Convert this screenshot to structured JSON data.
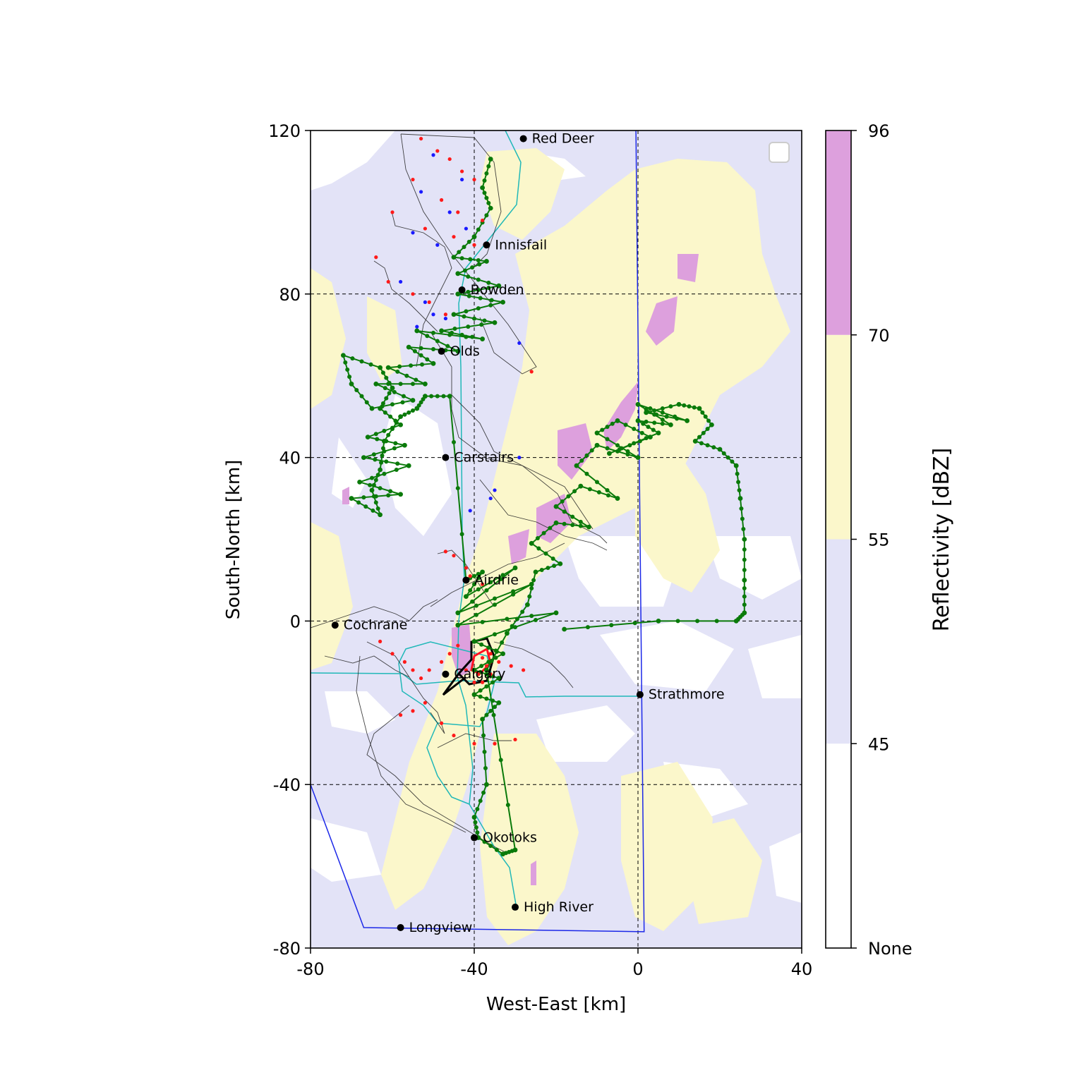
{
  "chart_data": {
    "type": "scatter",
    "xlabel": "West-East [km]",
    "ylabel": "South-North [km]",
    "xlim": [
      -80,
      40
    ],
    "ylim": [
      -80,
      120
    ],
    "xticks": [
      "-80",
      "-40",
      "0",
      "40"
    ],
    "yticks": [
      "120",
      "80",
      "40",
      "0",
      "-40",
      "-80"
    ],
    "grid_x": [
      -40,
      0
    ],
    "grid_y": [
      80,
      40,
      0,
      -40
    ],
    "legend": "top-right (empty)",
    "colorbar": {
      "label": "Reflectivity [dBZ]",
      "ticks": [
        "None",
        "45",
        "55",
        "70",
        "96"
      ],
      "bands": [
        {
          "from": "None",
          "to": "45",
          "color": "#ffffff"
        },
        {
          "from": "45",
          "to": "55",
          "color": "#e3e3f7"
        },
        {
          "from": "55",
          "to": "70",
          "color": "#fbf7cb"
        },
        {
          "from": "70",
          "to": "96",
          "color": "#dda0dd"
        }
      ]
    },
    "cities": [
      {
        "name": "Red Deer",
        "x": -28,
        "y": 118
      },
      {
        "name": "Innisfail",
        "x": -37,
        "y": 92
      },
      {
        "name": "Bowden",
        "x": -43,
        "y": 81
      },
      {
        "name": "Olds",
        "x": -48,
        "y": 66
      },
      {
        "name": "Carstairs",
        "x": -47,
        "y": 40
      },
      {
        "name": "Airdrie",
        "x": -42,
        "y": 10
      },
      {
        "name": "Cochrane",
        "x": -74,
        "y": -1
      },
      {
        "name": "Calgary",
        "x": -47,
        "y": -13
      },
      {
        "name": "Strathmore",
        "x": 0.5,
        "y": -18
      },
      {
        "name": "Okotoks",
        "x": -40,
        "y": -53
      },
      {
        "name": "High River",
        "x": -30,
        "y": -70
      },
      {
        "name": "Longview",
        "x": -58,
        "y": -75
      }
    ],
    "boundary_blue": [
      [
        -80,
        -40
      ],
      [
        -67,
        -75
      ],
      [
        1.5,
        -76
      ],
      [
        -0.5,
        120
      ]
    ],
    "green_track": [
      [
        -36,
        113
      ],
      [
        -38,
        106
      ],
      [
        -36,
        101
      ],
      [
        -40,
        94
      ],
      [
        -45,
        89
      ],
      [
        -37,
        88
      ],
      [
        -44,
        85
      ],
      [
        -34,
        82
      ],
      [
        -44,
        80
      ],
      [
        -33,
        78
      ],
      [
        -45,
        75
      ],
      [
        -35,
        73
      ],
      [
        -48,
        71
      ],
      [
        -38,
        69
      ],
      [
        -54,
        71
      ],
      [
        -44,
        66
      ],
      [
        -56,
        67
      ],
      [
        -50,
        63
      ],
      [
        -61,
        62
      ],
      [
        -52,
        58
      ],
      [
        -64,
        58
      ],
      [
        -55,
        54
      ],
      [
        -65,
        52
      ],
      [
        -70,
        58
      ],
      [
        -72,
        65
      ],
      [
        -63,
        62
      ],
      [
        -60,
        57
      ],
      [
        -63,
        52
      ],
      [
        -58,
        48
      ],
      [
        -66,
        45
      ],
      [
        -57,
        43
      ],
      [
        -67,
        40
      ],
      [
        -56,
        38
      ],
      [
        -68,
        34
      ],
      [
        -58,
        31
      ],
      [
        -70,
        30
      ],
      [
        -63,
        26
      ],
      [
        -65,
        32
      ],
      [
        -63,
        37
      ],
      [
        -62,
        44
      ],
      [
        -58,
        50
      ],
      [
        -54,
        52
      ],
      [
        -52,
        55
      ],
      [
        -46,
        55
      ],
      [
        -42,
        10
      ],
      [
        -38,
        12
      ],
      [
        -42,
        6
      ],
      [
        -30,
        13
      ],
      [
        -44,
        2
      ],
      [
        -26,
        9
      ],
      [
        -44,
        -1
      ],
      [
        -20,
        2
      ],
      [
        -40,
        -5
      ],
      [
        -33,
        -8
      ],
      [
        -40,
        -12
      ],
      [
        -34,
        -14
      ],
      [
        -40,
        -18
      ],
      [
        -34,
        -20
      ],
      [
        -38,
        -24
      ],
      [
        -37,
        -40
      ],
      [
        -40,
        -48
      ],
      [
        -39,
        -53
      ],
      [
        -33,
        -57
      ],
      [
        -30,
        -56
      ],
      [
        -37,
        -12
      ],
      [
        -32,
        -3
      ],
      [
        -27,
        4
      ],
      [
        -25,
        12
      ],
      [
        -19,
        14
      ],
      [
        -26,
        19
      ],
      [
        -20,
        24
      ],
      [
        -12,
        23
      ],
      [
        -20,
        28
      ],
      [
        -14,
        33
      ],
      [
        -5,
        30
      ],
      [
        -15,
        38
      ],
      [
        -10,
        43
      ],
      [
        0,
        40
      ],
      [
        -10,
        46
      ],
      [
        -5,
        49
      ],
      [
        3,
        45
      ],
      [
        -7,
        41
      ],
      [
        5,
        46
      ],
      [
        0,
        49
      ],
      [
        8,
        48
      ],
      [
        0,
        53
      ],
      [
        12,
        49
      ],
      [
        2,
        51
      ],
      [
        10,
        53
      ],
      [
        15,
        52
      ],
      [
        18,
        48
      ],
      [
        14,
        44
      ],
      [
        20,
        42
      ],
      [
        24,
        38
      ],
      [
        25,
        30
      ],
      [
        26,
        20
      ],
      [
        26,
        10
      ],
      [
        26,
        2
      ],
      [
        24,
        0
      ],
      [
        5,
        0
      ],
      [
        -18,
        -2
      ]
    ],
    "red_points": [
      [
        -53,
        118
      ],
      [
        -49,
        115
      ],
      [
        -46,
        113
      ],
      [
        -43,
        110
      ],
      [
        -40,
        108
      ],
      [
        -55,
        108
      ],
      [
        -48,
        103
      ],
      [
        -44,
        100
      ],
      [
        -38,
        98
      ],
      [
        -60,
        100
      ],
      [
        -52,
        96
      ],
      [
        -45,
        94
      ],
      [
        -40,
        92
      ],
      [
        -64,
        89
      ],
      [
        -61,
        83
      ],
      [
        -55,
        80
      ],
      [
        -51,
        78
      ],
      [
        -47,
        75
      ],
      [
        -26,
        61
      ],
      [
        -47,
        17
      ],
      [
        -45,
        16
      ],
      [
        -42,
        13
      ],
      [
        -41,
        11
      ],
      [
        -38,
        9
      ],
      [
        -63,
        -5
      ],
      [
        -60,
        -8
      ],
      [
        -57,
        -10
      ],
      [
        -55,
        -12
      ],
      [
        -53,
        -14
      ],
      [
        -51,
        -12
      ],
      [
        -48,
        -10
      ],
      [
        -46,
        -8
      ],
      [
        -44,
        -6
      ],
      [
        -42,
        -12
      ],
      [
        -40,
        -15
      ],
      [
        -36,
        -8
      ],
      [
        -34,
        -10
      ],
      [
        -31,
        -11
      ],
      [
        -28,
        -12
      ],
      [
        -52,
        -20
      ],
      [
        -55,
        -22
      ],
      [
        -58,
        -23
      ],
      [
        -48,
        -25
      ],
      [
        -45,
        -28
      ],
      [
        -40,
        -30
      ],
      [
        -35,
        -30
      ],
      [
        -30,
        -29
      ],
      [
        -38,
        -9
      ],
      [
        -37,
        -11
      ],
      [
        -39,
        -13
      ],
      [
        -36,
        -13
      ],
      [
        -38,
        -15
      ]
    ],
    "blue_points": [
      [
        -50,
        114
      ],
      [
        -43,
        108
      ],
      [
        -53,
        105
      ],
      [
        -46,
        100
      ],
      [
        -42,
        96
      ],
      [
        -55,
        95
      ],
      [
        -49,
        92
      ],
      [
        -58,
        83
      ],
      [
        -52,
        78
      ],
      [
        -50,
        75
      ],
      [
        -54,
        72
      ],
      [
        -47,
        74
      ],
      [
        -29,
        68
      ],
      [
        -29,
        40
      ],
      [
        -35,
        32
      ],
      [
        -36,
        30
      ],
      [
        -41,
        27
      ]
    ]
  }
}
